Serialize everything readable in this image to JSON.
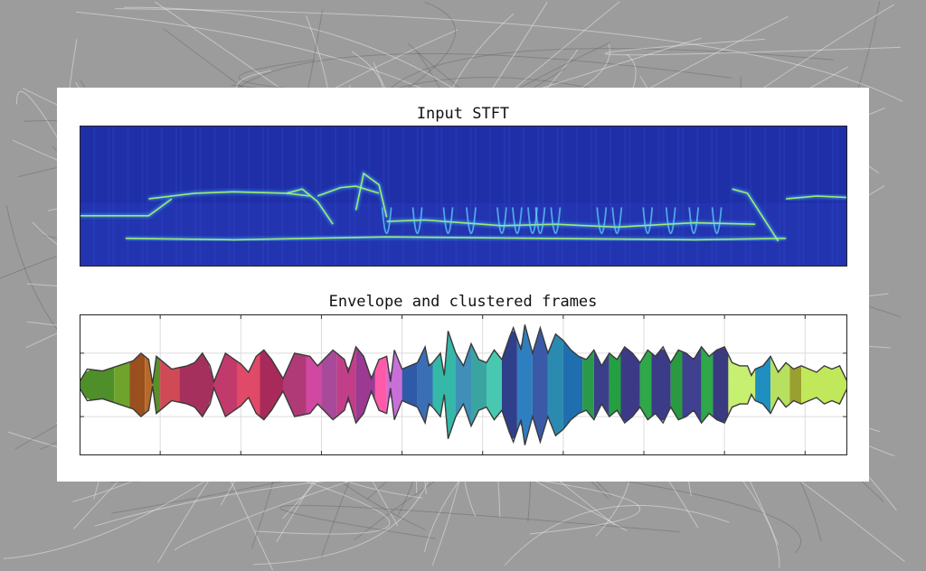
{
  "chart_data": [
    {
      "type": "heatmap",
      "title": "Input STFT",
      "colormap": "jet",
      "background_color": "#1f2fa8",
      "ridges": [
        {
          "x": [
            0.0,
            0.05,
            0.09,
            0.1,
            0.12
          ],
          "y": [
            0.36,
            0.36,
            0.36,
            0.4,
            0.48
          ]
        },
        {
          "x": [
            0.09,
            0.15,
            0.2,
            0.27,
            0.3
          ],
          "y": [
            0.48,
            0.52,
            0.53,
            0.52,
            0.5
          ]
        },
        {
          "x": [
            0.27,
            0.29,
            0.31,
            0.33
          ],
          "y": [
            0.52,
            0.55,
            0.46,
            0.3
          ]
        },
        {
          "x": [
            0.31,
            0.34,
            0.36,
            0.39
          ],
          "y": [
            0.5,
            0.56,
            0.57,
            0.52
          ]
        },
        {
          "x": [
            0.36,
            0.37,
            0.39,
            0.4
          ],
          "y": [
            0.4,
            0.66,
            0.58,
            0.35
          ]
        },
        {
          "x": [
            0.4,
            0.45,
            0.55,
            0.62,
            0.7,
            0.8,
            0.88
          ],
          "y": [
            0.32,
            0.33,
            0.29,
            0.3,
            0.28,
            0.31,
            0.3
          ]
        },
        {
          "x": [
            0.06,
            0.2,
            0.4,
            0.6,
            0.8,
            0.92
          ],
          "y": [
            0.2,
            0.19,
            0.21,
            0.2,
            0.19,
            0.2
          ]
        },
        {
          "x": [
            0.85,
            0.87,
            0.89,
            0.91
          ],
          "y": [
            0.55,
            0.52,
            0.35,
            0.18
          ]
        },
        {
          "x": [
            0.92,
            0.96,
            1.0
          ],
          "y": [
            0.48,
            0.5,
            0.49
          ]
        }
      ],
      "dips": [
        0.4,
        0.44,
        0.48,
        0.51,
        0.55,
        0.57,
        0.59,
        0.6,
        0.62,
        0.68,
        0.7,
        0.74,
        0.77,
        0.8,
        0.83
      ]
    },
    {
      "type": "area",
      "title": "Envelope and clustered frames",
      "grid": true,
      "x_range": [
        0,
        1
      ],
      "y_range": [
        -1,
        1
      ],
      "yticks": [
        -0.5,
        0,
        0.5
      ],
      "xticks": [
        0,
        0.105,
        0.21,
        0.315,
        0.42,
        0.525,
        0.63,
        0.735,
        0.84,
        0.945,
        1
      ],
      "amplitude": [
        [
          0.0,
          0.05
        ],
        [
          0.01,
          0.25
        ],
        [
          0.03,
          0.22
        ],
        [
          0.05,
          0.3
        ],
        [
          0.07,
          0.38
        ],
        [
          0.08,
          0.5
        ],
        [
          0.09,
          0.4
        ],
        [
          0.095,
          0.02
        ],
        [
          0.1,
          0.45
        ],
        [
          0.12,
          0.25
        ],
        [
          0.14,
          0.3
        ],
        [
          0.15,
          0.35
        ],
        [
          0.16,
          0.5
        ],
        [
          0.17,
          0.3
        ],
        [
          0.175,
          0.05
        ],
        [
          0.19,
          0.5
        ],
        [
          0.21,
          0.33
        ],
        [
          0.22,
          0.2
        ],
        [
          0.23,
          0.45
        ],
        [
          0.24,
          0.55
        ],
        [
          0.25,
          0.4
        ],
        [
          0.265,
          0.1
        ],
        [
          0.28,
          0.5
        ],
        [
          0.3,
          0.45
        ],
        [
          0.31,
          0.3
        ],
        [
          0.33,
          0.55
        ],
        [
          0.345,
          0.4
        ],
        [
          0.35,
          0.2
        ],
        [
          0.36,
          0.6
        ],
        [
          0.37,
          0.45
        ],
        [
          0.38,
          0.1
        ],
        [
          0.39,
          0.4
        ],
        [
          0.4,
          0.45
        ],
        [
          0.405,
          0.05
        ],
        [
          0.41,
          0.55
        ],
        [
          0.42,
          0.25
        ],
        [
          0.44,
          0.35
        ],
        [
          0.45,
          0.6
        ],
        [
          0.455,
          0.3
        ],
        [
          0.46,
          0.35
        ],
        [
          0.47,
          0.5
        ],
        [
          0.475,
          0.15
        ],
        [
          0.48,
          0.85
        ],
        [
          0.49,
          0.5
        ],
        [
          0.5,
          0.3
        ],
        [
          0.51,
          0.65
        ],
        [
          0.52,
          0.4
        ],
        [
          0.53,
          0.35
        ],
        [
          0.54,
          0.55
        ],
        [
          0.55,
          0.4
        ],
        [
          0.56,
          0.75
        ],
        [
          0.565,
          0.9
        ],
        [
          0.575,
          0.55
        ],
        [
          0.58,
          0.95
        ],
        [
          0.59,
          0.5
        ],
        [
          0.6,
          0.9
        ],
        [
          0.61,
          0.5
        ],
        [
          0.62,
          0.8
        ],
        [
          0.63,
          0.7
        ],
        [
          0.64,
          0.55
        ],
        [
          0.65,
          0.45
        ],
        [
          0.66,
          0.4
        ],
        [
          0.67,
          0.55
        ],
        [
          0.68,
          0.3
        ],
        [
          0.69,
          0.5
        ],
        [
          0.7,
          0.4
        ],
        [
          0.71,
          0.6
        ],
        [
          0.72,
          0.5
        ],
        [
          0.73,
          0.35
        ],
        [
          0.74,
          0.55
        ],
        [
          0.75,
          0.45
        ],
        [
          0.76,
          0.6
        ],
        [
          0.77,
          0.35
        ],
        [
          0.78,
          0.55
        ],
        [
          0.79,
          0.5
        ],
        [
          0.8,
          0.4
        ],
        [
          0.81,
          0.6
        ],
        [
          0.82,
          0.45
        ],
        [
          0.83,
          0.55
        ],
        [
          0.84,
          0.6
        ],
        [
          0.85,
          0.35
        ],
        [
          0.86,
          0.3
        ],
        [
          0.87,
          0.3
        ],
        [
          0.875,
          0.15
        ],
        [
          0.88,
          0.25
        ],
        [
          0.89,
          0.3
        ],
        [
          0.9,
          0.45
        ],
        [
          0.91,
          0.2
        ],
        [
          0.92,
          0.35
        ],
        [
          0.93,
          0.25
        ],
        [
          0.94,
          0.3
        ],
        [
          0.95,
          0.25
        ],
        [
          0.96,
          0.2
        ],
        [
          0.97,
          0.3
        ],
        [
          0.98,
          0.25
        ],
        [
          0.99,
          0.3
        ],
        [
          1.0,
          0.05
        ]
      ],
      "segments": [
        {
          "start": 0.0,
          "end": 0.045,
          "color": "#4f8f2a"
        },
        {
          "start": 0.045,
          "end": 0.065,
          "color": "#6ea32c"
        },
        {
          "start": 0.065,
          "end": 0.085,
          "color": "#9a4f1e"
        },
        {
          "start": 0.085,
          "end": 0.095,
          "color": "#b66a28"
        },
        {
          "start": 0.095,
          "end": 0.105,
          "color": "#5b8f2c"
        },
        {
          "start": 0.105,
          "end": 0.13,
          "color": "#d04a55"
        },
        {
          "start": 0.13,
          "end": 0.175,
          "color": "#a5305e"
        },
        {
          "start": 0.175,
          "end": 0.205,
          "color": "#c23a6c"
        },
        {
          "start": 0.205,
          "end": 0.235,
          "color": "#e04a68"
        },
        {
          "start": 0.235,
          "end": 0.265,
          "color": "#a82a5a"
        },
        {
          "start": 0.265,
          "end": 0.295,
          "color": "#b03a78"
        },
        {
          "start": 0.295,
          "end": 0.315,
          "color": "#d048a0"
        },
        {
          "start": 0.315,
          "end": 0.335,
          "color": "#a84a9a"
        },
        {
          "start": 0.335,
          "end": 0.36,
          "color": "#c03f88"
        },
        {
          "start": 0.36,
          "end": 0.385,
          "color": "#9a3a92"
        },
        {
          "start": 0.385,
          "end": 0.4,
          "color": "#ff5aa8"
        },
        {
          "start": 0.4,
          "end": 0.42,
          "color": "#c870d8"
        },
        {
          "start": 0.42,
          "end": 0.44,
          "color": "#2f5aa8"
        },
        {
          "start": 0.44,
          "end": 0.46,
          "color": "#3b6fb5"
        },
        {
          "start": 0.46,
          "end": 0.49,
          "color": "#35b8a8"
        },
        {
          "start": 0.49,
          "end": 0.51,
          "color": "#3f8fb8"
        },
        {
          "start": 0.51,
          "end": 0.53,
          "color": "#3aa5a0"
        },
        {
          "start": 0.53,
          "end": 0.55,
          "color": "#48c8b0"
        },
        {
          "start": 0.55,
          "end": 0.57,
          "color": "#2f3f8a"
        },
        {
          "start": 0.57,
          "end": 0.59,
          "color": "#2f7fc0"
        },
        {
          "start": 0.59,
          "end": 0.61,
          "color": "#3a5aa8"
        },
        {
          "start": 0.61,
          "end": 0.63,
          "color": "#2b8ab0"
        },
        {
          "start": 0.63,
          "end": 0.655,
          "color": "#1f6fb0"
        },
        {
          "start": 0.655,
          "end": 0.67,
          "color": "#2a9a4a"
        },
        {
          "start": 0.67,
          "end": 0.69,
          "color": "#3a3f8a"
        },
        {
          "start": 0.69,
          "end": 0.705,
          "color": "#25a040"
        },
        {
          "start": 0.705,
          "end": 0.73,
          "color": "#3c3a86"
        },
        {
          "start": 0.73,
          "end": 0.745,
          "color": "#2ea848"
        },
        {
          "start": 0.745,
          "end": 0.77,
          "color": "#3b3b88"
        },
        {
          "start": 0.77,
          "end": 0.785,
          "color": "#2a9a40"
        },
        {
          "start": 0.785,
          "end": 0.81,
          "color": "#3f4090"
        },
        {
          "start": 0.81,
          "end": 0.825,
          "color": "#2ea848"
        },
        {
          "start": 0.825,
          "end": 0.845,
          "color": "#3a3a80"
        },
        {
          "start": 0.845,
          "end": 0.88,
          "color": "#c8f070"
        },
        {
          "start": 0.88,
          "end": 0.9,
          "color": "#1f8fbf"
        },
        {
          "start": 0.9,
          "end": 0.925,
          "color": "#b8e060"
        },
        {
          "start": 0.925,
          "end": 0.94,
          "color": "#9aa030"
        },
        {
          "start": 0.94,
          "end": 1.0,
          "color": "#c0e85a"
        }
      ]
    }
  ]
}
